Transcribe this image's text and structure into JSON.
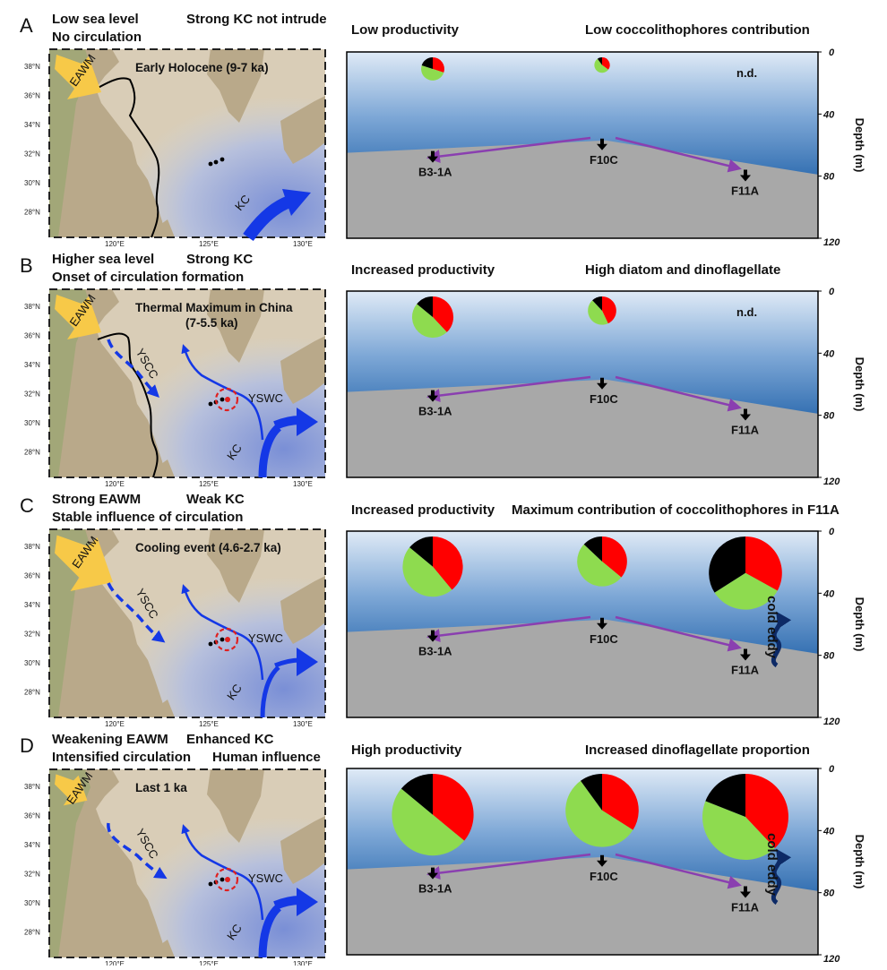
{
  "colors": {
    "diatom": "#8edb4f",
    "dinoflagellate": "#ff0000",
    "coccolithophore": "#000000",
    "ysc_current": "#1438e6",
    "transport_arrow": "#8a3fb0",
    "ewm_arrow": "#f7c948",
    "sediment": "#a8a8a8",
    "sea_top": "#dfeaf6",
    "sea_bottom": "#1e4e87",
    "land": "#b9a98a",
    "shelf_sea": "#d9cdb7",
    "deep_sea": "#7a8fd6"
  },
  "shared": {
    "stations": [
      "B3-1A",
      "F10C",
      "F11A"
    ],
    "depth_axis": {
      "label": "Depth (m)",
      "ticks": [
        "0",
        "40",
        "80",
        "120"
      ],
      "range_m": [
        0,
        120
      ]
    },
    "map_lat_labels": [
      "38°N",
      "36°N",
      "34°N",
      "32°N",
      "30°N",
      "28°N"
    ],
    "map_lon_labels": [
      "120°E",
      "125°E",
      "130°E"
    ],
    "labels": {
      "ewm": "EAWM",
      "kc": "KC",
      "yscc": "YSCC",
      "yswc": "YSWC",
      "nd": "n.d.",
      "eddy": "cold eddy"
    }
  },
  "panels": [
    {
      "letter": "A",
      "header_line1": [
        "Low sea level",
        "Strong KC not intrude"
      ],
      "header_line2": [
        "No circulation",
        ""
      ],
      "map_title": "Early Holocene (9-7 ka)",
      "map_title2": "",
      "right_header": [
        "Low productivity",
        "Low coccolithophores contribution"
      ],
      "pies": [
        {
          "station": "B3-1A",
          "relative_size": 0.27,
          "diatom": 50,
          "dinoflagellate": 30,
          "coccolithophore": 20
        },
        {
          "station": "F10C",
          "relative_size": 0.18,
          "diatom": 55,
          "dinoflagellate": 35,
          "coccolithophore": 10
        },
        {
          "station": "F11A",
          "relative_size": 0,
          "not_determined": true
        }
      ],
      "show_currents": false,
      "show_eddy": false
    },
    {
      "letter": "B",
      "header_line1": [
        "Higher sea level",
        "Strong KC"
      ],
      "header_line2": [
        "Onset of circulation formation",
        ""
      ],
      "map_title": "Thermal Maximum in China",
      "map_title2": "(7-5.5 ka)",
      "right_header": [
        "Increased productivity",
        "High diatom and dinoflagellate"
      ],
      "pies": [
        {
          "station": "B3-1A",
          "relative_size": 0.48,
          "diatom": 48,
          "dinoflagellate": 38,
          "coccolithophore": 14
        },
        {
          "station": "F10C",
          "relative_size": 0.33,
          "diatom": 45,
          "dinoflagellate": 43,
          "coccolithophore": 12
        },
        {
          "station": "F11A",
          "relative_size": 0,
          "not_determined": true
        }
      ],
      "show_currents": true,
      "show_eddy": false
    },
    {
      "letter": "C",
      "header_line1": [
        "Strong EAWM",
        "Weak KC"
      ],
      "header_line2": [
        "Stable influence of circulation",
        ""
      ],
      "map_title": "Cooling event (4.6-2.7 ka)",
      "map_title2": "",
      "right_header": [
        "Increased productivity",
        "Maximum contribution of coccolithophores in F11A"
      ],
      "pies": [
        {
          "station": "B3-1A",
          "relative_size": 0.7,
          "diatom": 47,
          "dinoflagellate": 39,
          "coccolithophore": 14
        },
        {
          "station": "F10C",
          "relative_size": 0.58,
          "diatom": 51,
          "dinoflagellate": 36,
          "coccolithophore": 13
        },
        {
          "station": "F11A",
          "relative_size": 0.85,
          "diatom": 33,
          "dinoflagellate": 33,
          "coccolithophore": 34
        }
      ],
      "show_currents": true,
      "show_eddy": true
    },
    {
      "letter": "D",
      "header_line1": [
        "Weakening EAWM",
        "Enhanced KC"
      ],
      "header_line2": [
        "Intensified circulation",
        "Human influence"
      ],
      "map_title": "Last 1 ka",
      "map_title2": "",
      "right_header": [
        "High productivity",
        "Increased dinoflagellate proportion"
      ],
      "pies": [
        {
          "station": "B3-1A",
          "relative_size": 0.95,
          "diatom": 50,
          "dinoflagellate": 36,
          "coccolithophore": 14
        },
        {
          "station": "F10C",
          "relative_size": 0.85,
          "diatom": 56,
          "dinoflagellate": 34,
          "coccolithophore": 10
        },
        {
          "station": "F11A",
          "relative_size": 1.0,
          "diatom": 43,
          "dinoflagellate": 38,
          "coccolithophore": 19
        }
      ],
      "show_currents": true,
      "show_eddy": true
    }
  ]
}
